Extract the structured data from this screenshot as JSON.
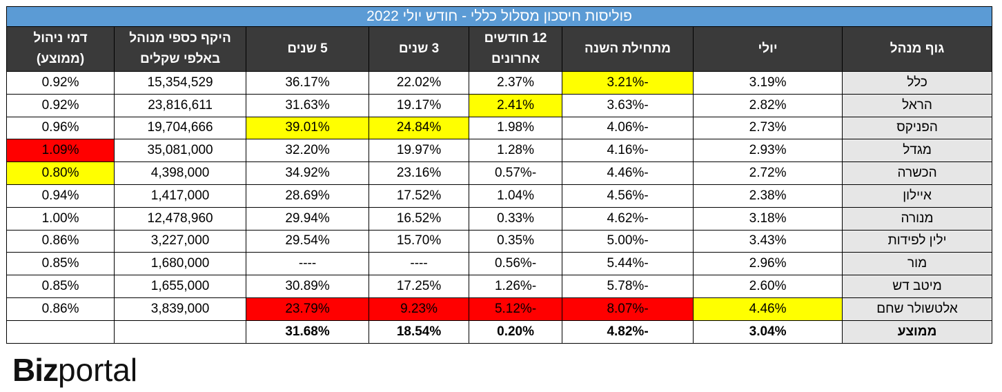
{
  "title": "פוליסות חיסכון מסלול כללי - חודש יולי 2022",
  "headers": {
    "manager": "גוף מנהל",
    "july": "יולי",
    "ytd": "מתחילת השנה",
    "m12_line1": "12 חודשים",
    "m12_line2": "אחרונים",
    "y3": "3 שנים",
    "y5": "5 שנים",
    "aum_line1": "היקף כספי מנוהל",
    "aum_line2": "באלפי שקלים",
    "fee_line1": "דמי ניהול",
    "fee_line2": "(ממוצע)"
  },
  "rows": [
    {
      "name": "כלל",
      "july": "3.19%",
      "ytd": "-3.21%",
      "m12": "2.37%",
      "y3": "22.02%",
      "y5": "36.17%",
      "aum": "15,354,529",
      "fee": "0.92%"
    },
    {
      "name": "הראל",
      "july": "2.82%",
      "ytd": "-3.63%",
      "m12": "2.41%",
      "y3": "19.17%",
      "y5": "31.63%",
      "aum": "23,816,611",
      "fee": "0.92%"
    },
    {
      "name": "הפניקס",
      "july": "2.73%",
      "ytd": "-4.06%",
      "m12": "1.98%",
      "y3": "24.84%",
      "y5": "39.01%",
      "aum": "19,704,666",
      "fee": "0.96%"
    },
    {
      "name": "מגדל",
      "july": "2.93%",
      "ytd": "-4.16%",
      "m12": "1.28%",
      "y3": "19.97%",
      "y5": "32.20%",
      "aum": "35,081,000",
      "fee": "1.09%"
    },
    {
      "name": "הכשרה",
      "july": "2.72%",
      "ytd": "-4.46%",
      "m12": "-0.57%",
      "y3": "23.16%",
      "y5": "34.92%",
      "aum": "4,398,000",
      "fee": "0.80%"
    },
    {
      "name": "איילון",
      "july": "2.38%",
      "ytd": "-4.56%",
      "m12": "1.04%",
      "y3": "17.52%",
      "y5": "28.69%",
      "aum": "1,417,000",
      "fee": "0.94%"
    },
    {
      "name": "מנורה",
      "july": "3.18%",
      "ytd": "-4.62%",
      "m12": "0.33%",
      "y3": "16.52%",
      "y5": "29.94%",
      "aum": "12,478,960",
      "fee": "1.00%"
    },
    {
      "name": "ילין לפידות",
      "july": "3.43%",
      "ytd": "-5.00%",
      "m12": "0.35%",
      "y3": "15.70%",
      "y5": "29.54%",
      "aum": "3,227,000",
      "fee": "0.86%"
    },
    {
      "name": "מור",
      "july": "2.96%",
      "ytd": "-5.44%",
      "m12": "-0.56%",
      "y3": "----",
      "y5": "----",
      "aum": "1,680,000",
      "fee": "0.85%"
    },
    {
      "name": "מיטב דש",
      "july": "2.60%",
      "ytd": "-5.78%",
      "m12": "-1.26%",
      "y3": "17.25%",
      "y5": "30.89%",
      "aum": "1,655,000",
      "fee": "0.85%"
    },
    {
      "name": "אלטשולר שחם",
      "july": "4.46%",
      "ytd": "-8.07%",
      "m12": "-5.12%",
      "y3": "9.23%",
      "y5": "23.79%",
      "aum": "3,839,000",
      "fee": "0.86%"
    }
  ],
  "average": {
    "name": "ממוצע",
    "july": "3.04%",
    "ytd": "-4.82%",
    "m12": "0.20%",
    "y3": "18.54%",
    "y5": "31.68%",
    "aum": "",
    "fee": ""
  },
  "logo": {
    "part1": "Biz",
    "part2": "portal"
  },
  "colors": {
    "title_bg": "#5b9bd5",
    "header_bg": "#3a3a3a",
    "best": "#ffff00",
    "worst": "#ff0000",
    "name_bg": "#e6e6e6"
  }
}
